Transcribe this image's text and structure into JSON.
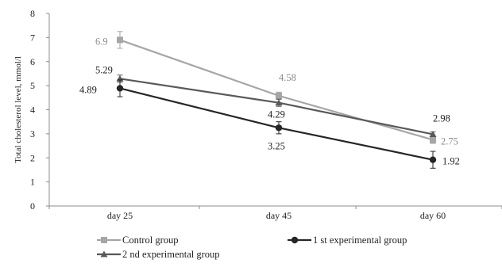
{
  "chart_data": {
    "type": "line",
    "title": "",
    "xlabel": "",
    "ylabel": "Total cholesterol level, mmol/l",
    "categories": [
      "day 25",
      "day 45",
      "day 60"
    ],
    "ylim": [
      0,
      8
    ],
    "yticks": [
      "0",
      "1",
      "2",
      "3",
      "4",
      "5",
      "6",
      "7",
      "8"
    ],
    "grid": false,
    "legend_position": "bottom",
    "series": [
      {
        "name": "Control group",
        "values": [
          6.9,
          4.58,
          2.75
        ],
        "errors": [
          0.35,
          0.15,
          0.15
        ],
        "labels": [
          "6.9",
          "4.58",
          "2.75"
        ],
        "color": "#a6a6a6",
        "label_color": "#8c8c8c",
        "marker": "square"
      },
      {
        "name": "1 st experimental group",
        "values": [
          4.89,
          3.25,
          1.92
        ],
        "errors": [
          0.35,
          0.25,
          0.35
        ],
        "labels": [
          "4.89",
          "3.25",
          "1.92"
        ],
        "color": "#262626",
        "label_color": "#222222",
        "marker": "circle"
      },
      {
        "name": "2 nd experimental group",
        "values": [
          5.29,
          4.29,
          2.98
        ],
        "errors": [
          0.15,
          0.15,
          0.1
        ],
        "labels": [
          "5.29",
          "4.29",
          "2.98"
        ],
        "color": "#595959",
        "label_color": "#222222",
        "marker": "triangle"
      }
    ]
  }
}
